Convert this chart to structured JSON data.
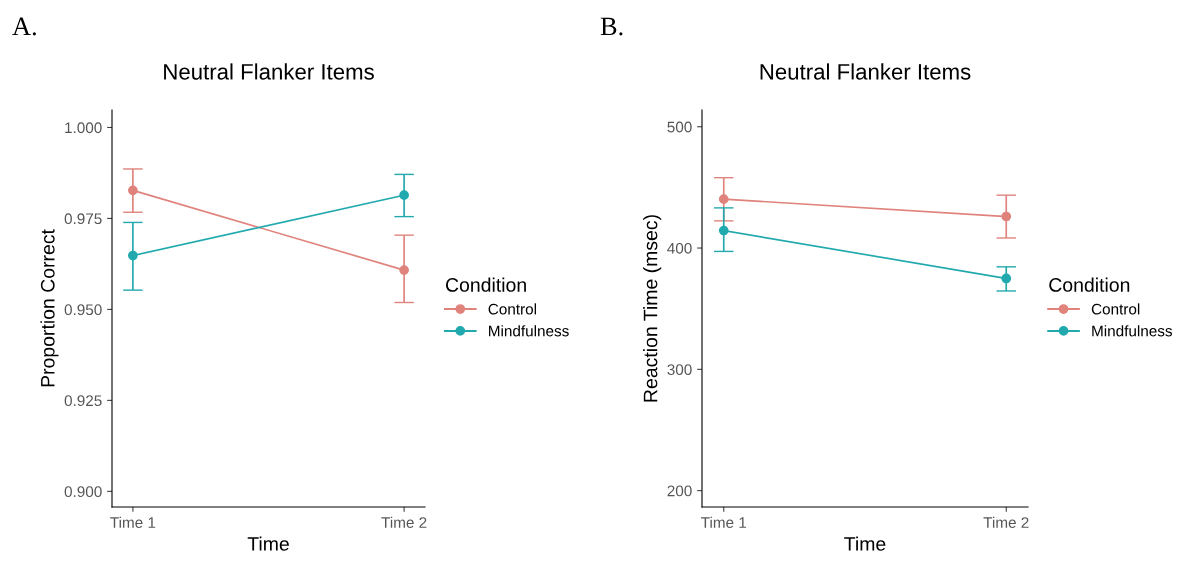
{
  "chart_data": [
    {
      "type": "line",
      "title": "Neutral Flanker Items",
      "xlabel": "Time",
      "ylabel": "Proportion Correct",
      "legend_title": "Condition",
      "annotations": [
        "A."
      ],
      "categories": [
        "Time 1",
        "Time 2"
      ],
      "ylim": [
        0.8957,
        1.0048
      ],
      "yticks": [
        {
          "value": 0.9,
          "label": "0.900"
        },
        {
          "value": 0.925,
          "label": "0.925"
        },
        {
          "value": 0.95,
          "label": "0.950"
        },
        {
          "value": 0.975,
          "label": "0.975"
        },
        {
          "value": 1.0,
          "label": "1.000"
        }
      ],
      "grid": false,
      "legend": "right",
      "marker": "circle",
      "line_style": "solid",
      "series": [
        {
          "name": "Control",
          "color": "#e0837c",
          "values": [
            0.9827,
            0.9608
          ],
          "errors": [
            [
              0.9767,
              0.9886
            ],
            [
              0.9519,
              0.9704
            ]
          ]
        },
        {
          "name": "Mindfulness",
          "color": "#21a9ae",
          "values": [
            0.9648,
            0.9814
          ],
          "errors": [
            [
              0.9553,
              0.9739
            ],
            [
              0.9755,
              0.9871
            ]
          ]
        }
      ]
    },
    {
      "type": "line",
      "title": "Neutral Flanker Items",
      "xlabel": "Time",
      "ylabel": "Reaction Time (msec)",
      "legend_title": "Condition",
      "annotations": [
        "B."
      ],
      "categories": [
        "Time 1",
        "Time 2"
      ],
      "ylim": [
        186.5,
        513.8
      ],
      "yticks": [
        200,
        300,
        400,
        500
      ],
      "grid": false,
      "legend": "right",
      "marker": "circle",
      "line_style": "solid",
      "series": [
        {
          "name": "Control",
          "color": "#e0837c",
          "values": [
            440.3,
            426
          ],
          "errors": [
            [
              422.4,
              458
            ],
            [
              408.3,
              443.6
            ]
          ]
        },
        {
          "name": "Mindfulness",
          "color": "#21a9ae",
          "values": [
            414.4,
            374.9
          ],
          "errors": [
            [
              397.2,
              433.1
            ],
            [
              364.6,
              384.5
            ]
          ]
        }
      ]
    }
  ]
}
